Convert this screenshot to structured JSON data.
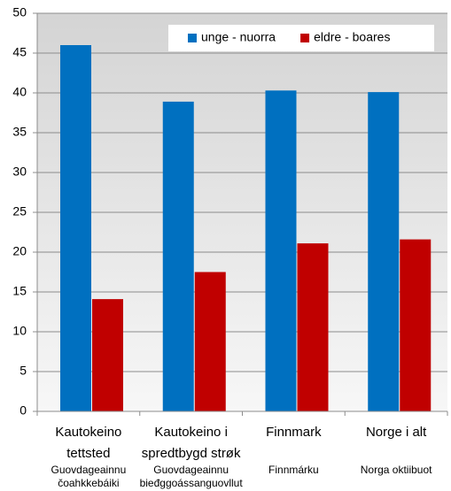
{
  "chart_data": {
    "type": "bar",
    "categories": [
      "Kautokeino tettsted",
      "Kautokeino i spredtbygd strøk",
      "Finnmark",
      "Norge i alt"
    ],
    "sublabels": [
      "Guovdageainnu čoahkkebáiki",
      "Guovdageainnu bieđggoássanguovllut",
      "Finnmárku",
      "Norga oktiibuot"
    ],
    "series": [
      {
        "name": "unge - nuorra",
        "color": "#0070c0",
        "values": [
          46,
          38.9,
          40.3,
          40.1
        ]
      },
      {
        "name": "eldre - boares",
        "color": "#c00000",
        "values": [
          14.1,
          17.5,
          21.1,
          21.6
        ]
      }
    ],
    "ylim": [
      0,
      50
    ],
    "yticks": [
      0,
      5,
      10,
      15,
      20,
      25,
      30,
      35,
      40,
      45,
      50
    ],
    "grid": true,
    "legend": "top-right"
  }
}
